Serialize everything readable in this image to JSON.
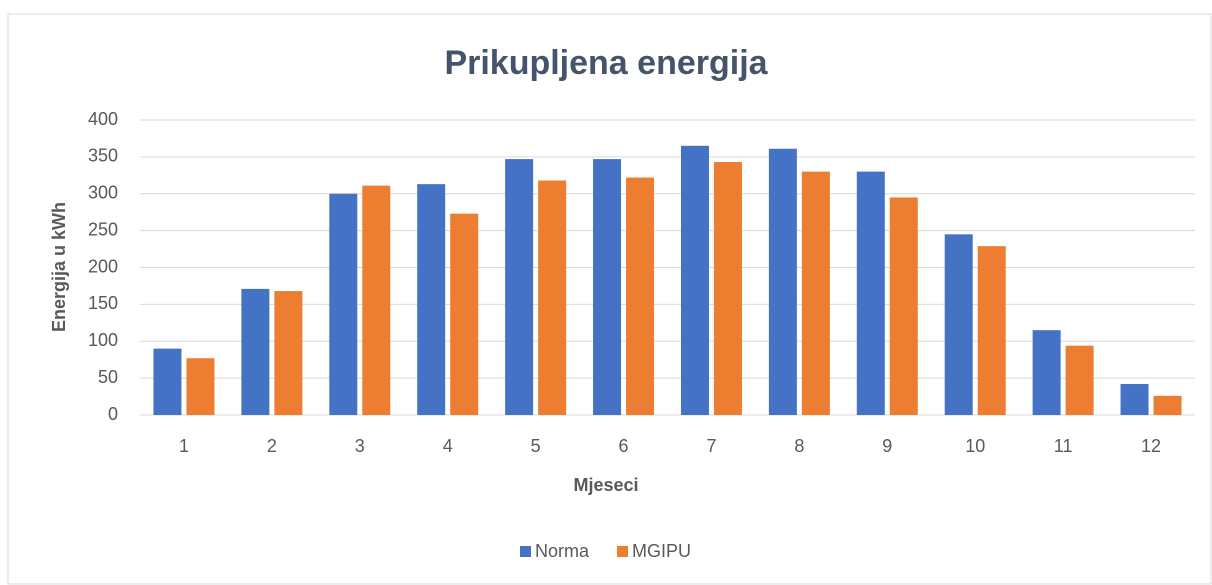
{
  "chart_data": {
    "type": "bar",
    "title": "Prikupljena energija",
    "x_label": "Mjeseci",
    "y_label": "Energija u kWh",
    "categories": [
      "1",
      "2",
      "3",
      "4",
      "5",
      "6",
      "7",
      "8",
      "9",
      "10",
      "11",
      "12"
    ],
    "series": [
      {
        "name": "Norma",
        "color": "#4472c4",
        "values": [
          90,
          171,
          300,
          313,
          347,
          347,
          365,
          361,
          330,
          245,
          115,
          42
        ]
      },
      {
        "name": "MGIPU",
        "color": "#ed7d31",
        "values": [
          77,
          168,
          311,
          273,
          318,
          322,
          343,
          330,
          295,
          229,
          94,
          26
        ]
      }
    ],
    "ylim": [
      0,
      400
    ],
    "yticks": [
      0,
      50,
      100,
      150,
      200,
      250,
      300,
      350,
      400
    ],
    "grid": true,
    "legend": "bottom"
  }
}
